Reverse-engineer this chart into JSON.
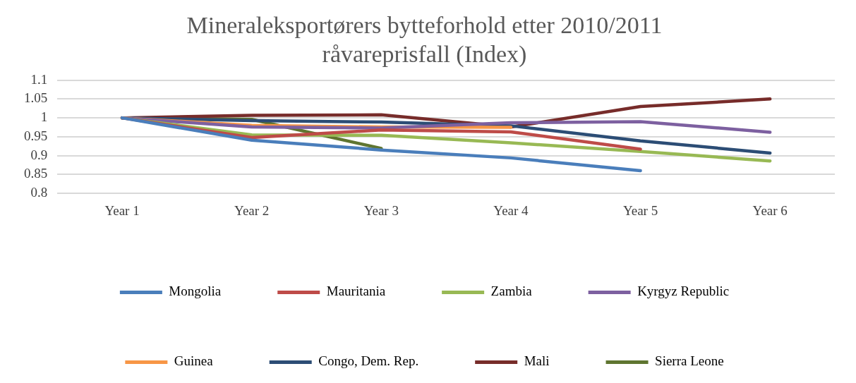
{
  "chart_data": {
    "type": "line",
    "title": "Mineraleksportørers bytteforhold etter 2010/2011 råvareprisfall (Index)",
    "categories": [
      "Year 1",
      "Year 2",
      "Year 3",
      "Year 4",
      "Year 5",
      "Year 6"
    ],
    "series": [
      {
        "name": "Mongolia",
        "color": "#4a7ebb",
        "values": [
          1,
          0.941,
          0.915,
          0.894,
          0.86,
          null
        ]
      },
      {
        "name": "Mauritania",
        "color": "#be4b48",
        "values": [
          1,
          0.948,
          0.968,
          0.963,
          0.917,
          null
        ]
      },
      {
        "name": "Zambia",
        "color": "#98b954",
        "values": [
          1,
          0.955,
          0.954,
          0.934,
          0.911,
          0.886
        ]
      },
      {
        "name": "Kyrgyz Republic",
        "color": "#7d60a0",
        "values": [
          1,
          0.976,
          0.973,
          0.987,
          0.99,
          0.962
        ]
      },
      {
        "name": "Guinea",
        "color": "#f79646",
        "values": [
          1,
          0.98,
          0.976,
          0.975,
          null,
          null
        ]
      },
      {
        "name": "Congo, Dem. Rep.",
        "color": "#2c4d75",
        "values": [
          1,
          0.993,
          0.989,
          0.979,
          0.939,
          0.907
        ]
      },
      {
        "name": "Mali",
        "color": "#772c2a",
        "values": [
          1,
          1.007,
          1.008,
          0.976,
          1.03,
          1.05
        ]
      },
      {
        "name": "Sierra Leone",
        "color": "#5f7530",
        "values": [
          1,
          0.996,
          0.919,
          null,
          null,
          null
        ]
      }
    ],
    "ylim": [
      0.8,
      1.1
    ],
    "yticks": [
      0.8,
      0.85,
      0.9,
      0.95,
      1,
      1.05,
      1.1
    ],
    "grid": "y",
    "legend": "bottom",
    "marker": "none",
    "line_style": "solid"
  }
}
